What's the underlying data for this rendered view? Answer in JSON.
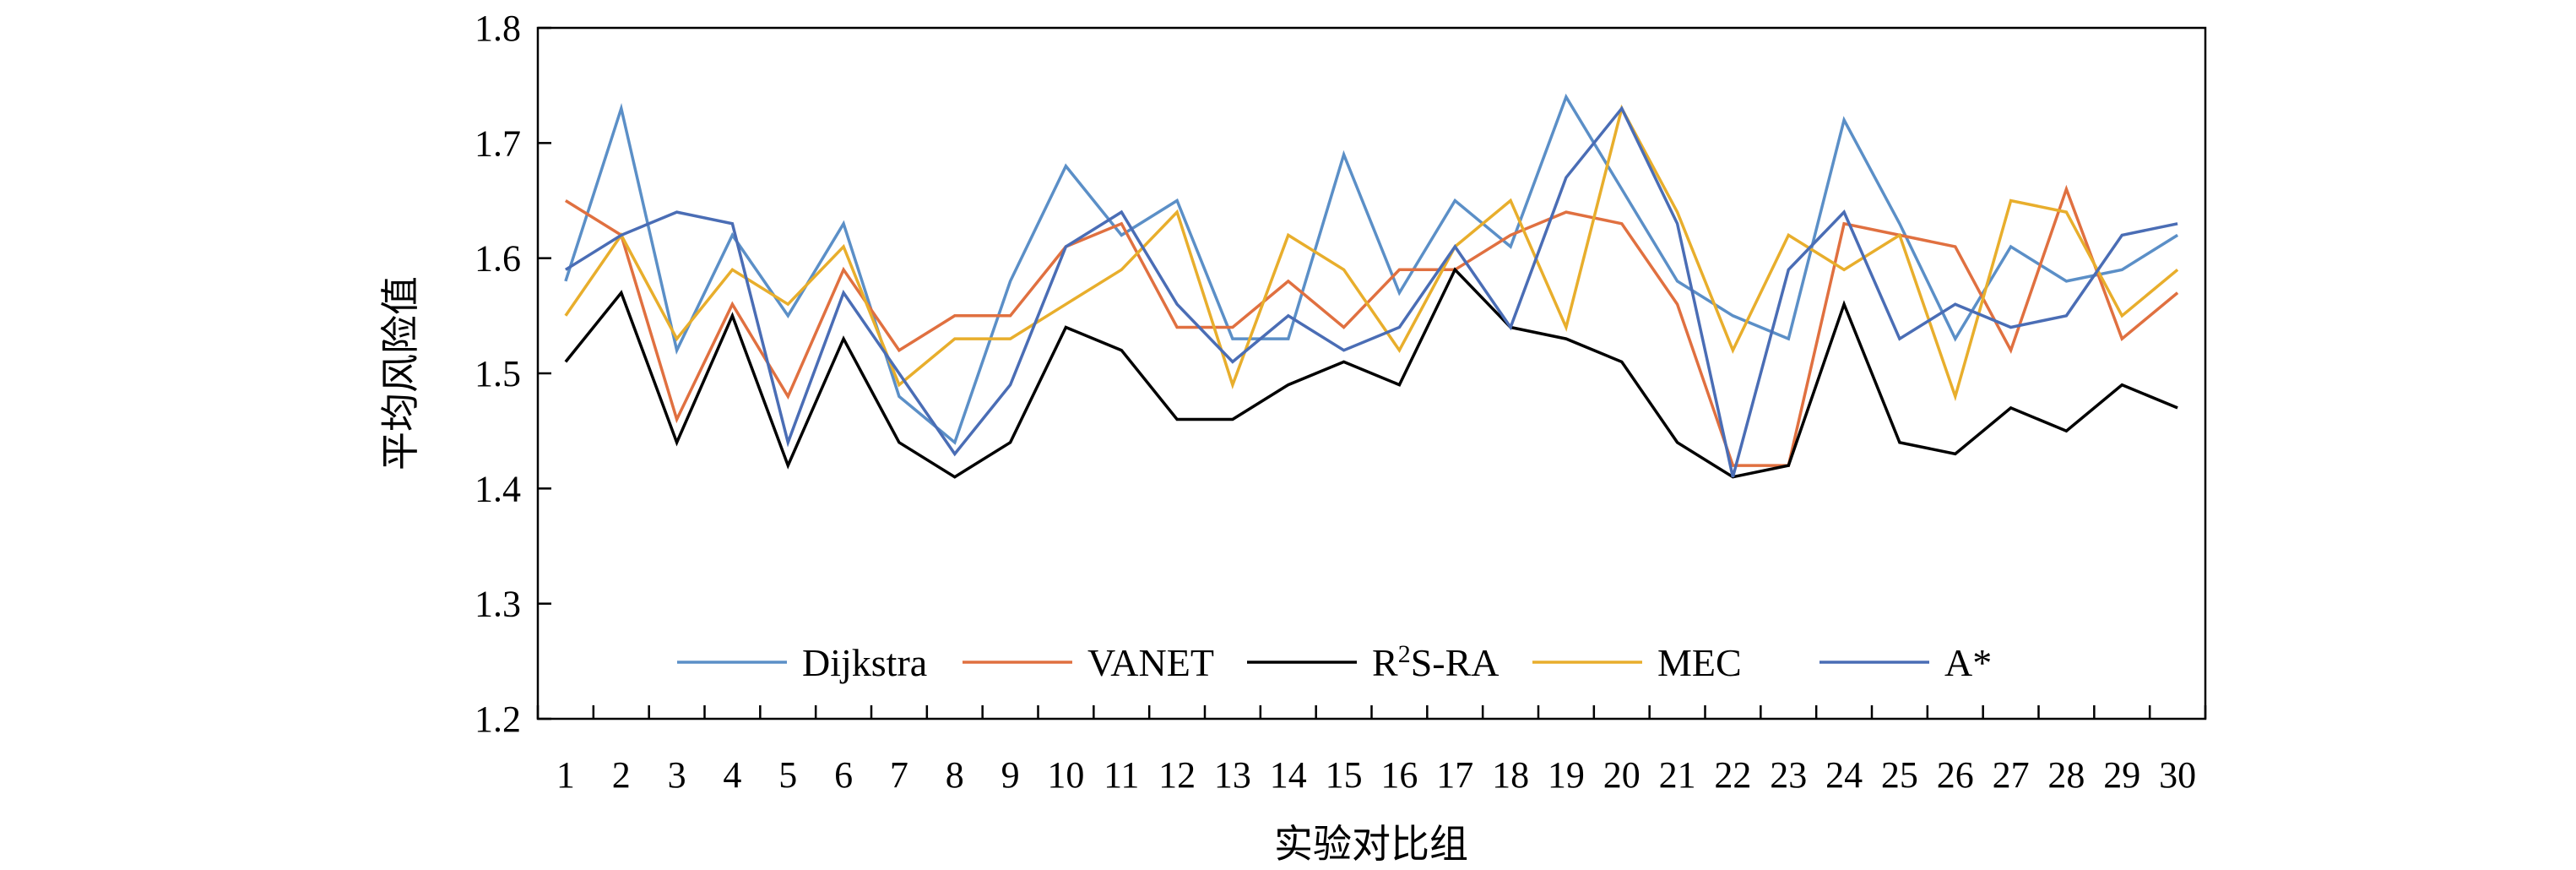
{
  "chart_data": {
    "type": "line",
    "title": "",
    "xlabel": "实验对比组",
    "ylabel": "平均风险值",
    "ylim": [
      1.2,
      1.8
    ],
    "yticks": [
      "1.2",
      "1.3",
      "1.4",
      "1.5",
      "1.6",
      "1.7",
      "1.8"
    ],
    "x": [
      "1",
      "2",
      "3",
      "4",
      "5",
      "6",
      "7",
      "8",
      "9",
      "10",
      "11",
      "12",
      "13",
      "14",
      "15",
      "16",
      "17",
      "18",
      "19",
      "20",
      "21",
      "22",
      "23",
      "24",
      "25",
      "26",
      "27",
      "28",
      "29",
      "30"
    ],
    "grid": false,
    "legend_position": "bottom-inside",
    "series": [
      {
        "name": "Dijkstra",
        "color": "#5b8fc7",
        "values": [
          1.58,
          1.73,
          1.52,
          1.62,
          1.55,
          1.63,
          1.48,
          1.44,
          1.58,
          1.68,
          1.62,
          1.65,
          1.53,
          1.53,
          1.69,
          1.57,
          1.65,
          1.61,
          1.74,
          1.66,
          1.58,
          1.55,
          1.53,
          1.72,
          1.63,
          1.53,
          1.61,
          1.58,
          1.59,
          1.62
        ]
      },
      {
        "name": "VANET",
        "color": "#e07040",
        "values": [
          1.65,
          1.62,
          1.46,
          1.56,
          1.48,
          1.59,
          1.52,
          1.55,
          1.55,
          1.61,
          1.63,
          1.54,
          1.54,
          1.58,
          1.54,
          1.59,
          1.59,
          1.62,
          1.64,
          1.63,
          1.56,
          1.42,
          1.42,
          1.63,
          1.62,
          1.61,
          1.52,
          1.66,
          1.53,
          1.57
        ]
      },
      {
        "name": "R²S-RA",
        "name_base": "R",
        "name_sup": "2",
        "name_rest": "S-RA",
        "color": "#000000",
        "values": [
          1.51,
          1.57,
          1.44,
          1.55,
          1.42,
          1.53,
          1.44,
          1.41,
          1.44,
          1.54,
          1.52,
          1.46,
          1.46,
          1.49,
          1.51,
          1.49,
          1.59,
          1.54,
          1.53,
          1.51,
          1.44,
          1.41,
          1.42,
          1.56,
          1.44,
          1.43,
          1.47,
          1.45,
          1.49,
          1.47
        ]
      },
      {
        "name": "MEC",
        "color": "#e8ae2c",
        "values": [
          1.55,
          1.62,
          1.53,
          1.59,
          1.56,
          1.61,
          1.49,
          1.53,
          1.53,
          1.56,
          1.59,
          1.64,
          1.49,
          1.62,
          1.59,
          1.52,
          1.61,
          1.65,
          1.54,
          1.73,
          1.64,
          1.52,
          1.62,
          1.59,
          1.62,
          1.48,
          1.65,
          1.64,
          1.55,
          1.59
        ]
      },
      {
        "name": "A*",
        "color": "#4a6db5",
        "values": [
          1.59,
          1.62,
          1.64,
          1.63,
          1.44,
          1.57,
          1.5,
          1.43,
          1.49,
          1.61,
          1.64,
          1.56,
          1.51,
          1.55,
          1.52,
          1.54,
          1.61,
          1.54,
          1.67,
          1.73,
          1.63,
          1.41,
          1.59,
          1.64,
          1.53,
          1.56,
          1.54,
          1.55,
          1.62,
          1.63
        ]
      }
    ]
  }
}
